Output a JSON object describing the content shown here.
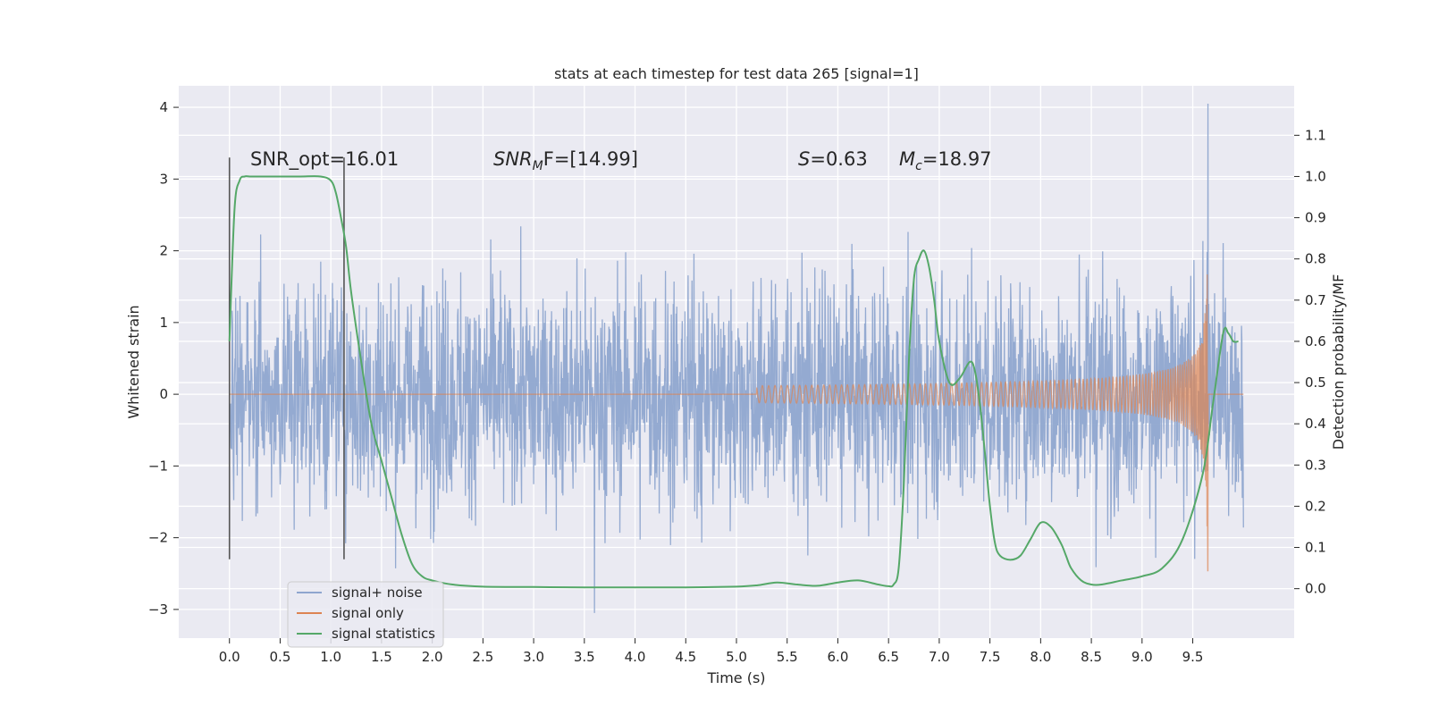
{
  "chart_data": {
    "type": "line",
    "title": "stats at each timestep for test data 265 [signal=1]",
    "xlabel": "Time (s)",
    "ylabel": "Whitened strain",
    "y2label": "Detection probability/MF",
    "xlim": [
      -0.5,
      10.5
    ],
    "ylim": [
      -3.4,
      4.3
    ],
    "y2lim": [
      -0.12,
      1.22
    ],
    "x_ticks": [
      0.0,
      0.5,
      1.0,
      1.5,
      2.0,
      2.5,
      3.0,
      3.5,
      4.0,
      4.5,
      5.0,
      5.5,
      6.0,
      6.5,
      7.0,
      7.5,
      8.0,
      8.5,
      9.0,
      9.5
    ],
    "x_tick_labels": [
      "0.0",
      "0.5",
      "1.0",
      "1.5",
      "2.0",
      "2.5",
      "3.0",
      "3.5",
      "4.0",
      "4.5",
      "5.0",
      "5.5",
      "6.0",
      "6.5",
      "7.0",
      "7.5",
      "8.0",
      "8.5",
      "9.0",
      "9.5"
    ],
    "y_ticks": [
      4,
      3,
      2,
      1,
      0,
      -1,
      -2,
      -3
    ],
    "y_tick_labels": [
      "4",
      "3",
      "2",
      "1",
      "0",
      "−1",
      "−2",
      "−3"
    ],
    "y2_ticks": [
      1.1,
      1.0,
      0.9,
      0.8,
      0.7,
      0.6,
      0.5,
      0.4,
      0.3,
      0.2,
      0.1,
      0.0
    ],
    "y2_tick_labels": [
      "1.1",
      "1.0",
      "0.9",
      "0.8",
      "0.7",
      "0.6",
      "0.5",
      "0.4",
      "0.3",
      "0.2",
      "0.1",
      "0.0"
    ],
    "grid": true,
    "legend_placement": "lower-left",
    "annotations": {
      "snr_opt": "SNR_opt=16.01",
      "snr_mf_base": "SNR",
      "snr_mf_sub": "M",
      "snr_mf_rest": "F=[14.99]",
      "s_sym": "S",
      "s_rest": "=0.63",
      "mc_sym": "M",
      "mc_sub": "c",
      "mc_rest": "=18.97"
    },
    "vertical_markers": [
      {
        "x": 0.0,
        "y_range": [
          -2.3,
          3.3
        ]
      },
      {
        "x": 1.13,
        "y_range": [
          -2.3,
          3.3
        ]
      }
    ],
    "series": [
      {
        "name": "signal+ noise",
        "color": "#8fa6cf",
        "x_range": [
          0.0,
          10.0
        ],
        "approx_envelope": {
          "upper_typical": 1.7,
          "lower_typical": -1.7,
          "max_peak": 4.05,
          "max_peak_x": 9.65,
          "min_peak": -3.05,
          "min_peak_x": 3.6
        }
      },
      {
        "name": "signal only",
        "color": "#dd8452",
        "chirp": {
          "start_x": 5.2,
          "merger_x": 9.65,
          "peak_amplitude": 2.8,
          "end_x": 10.0
        }
      },
      {
        "name": "signal statistics",
        "color": "#55a868",
        "axis": "right",
        "x": [
          0.0,
          0.05,
          0.1,
          0.15,
          0.2,
          0.3,
          0.5,
          0.7,
          0.9,
          1.0,
          1.05,
          1.1,
          1.15,
          1.2,
          1.3,
          1.4,
          1.5,
          1.6,
          1.7,
          1.8,
          1.9,
          2.0,
          2.2,
          2.5,
          3.0,
          3.5,
          4.0,
          4.5,
          5.0,
          5.2,
          5.4,
          5.6,
          5.8,
          6.0,
          6.2,
          6.4,
          6.5,
          6.55,
          6.6,
          6.65,
          6.7,
          6.75,
          6.8,
          6.85,
          6.9,
          6.95,
          7.0,
          7.1,
          7.2,
          7.3,
          7.35,
          7.4,
          7.45,
          7.5,
          7.55,
          7.6,
          7.7,
          7.8,
          7.9,
          8.0,
          8.1,
          8.2,
          8.25,
          8.3,
          8.4,
          8.5,
          8.6,
          8.8,
          9.0,
          9.2,
          9.4,
          9.6,
          9.7,
          9.8,
          9.85,
          9.9,
          9.95
        ],
        "values": [
          0.6,
          0.92,
          0.99,
          1.0,
          1.0,
          1.0,
          1.0,
          1.0,
          1.0,
          0.99,
          0.96,
          0.9,
          0.83,
          0.72,
          0.55,
          0.4,
          0.31,
          0.22,
          0.13,
          0.06,
          0.03,
          0.02,
          0.01,
          0.005,
          0.004,
          0.003,
          0.003,
          0.003,
          0.005,
          0.008,
          0.015,
          0.01,
          0.007,
          0.015,
          0.02,
          0.01,
          0.006,
          0.01,
          0.05,
          0.25,
          0.55,
          0.75,
          0.8,
          0.82,
          0.78,
          0.7,
          0.6,
          0.5,
          0.51,
          0.55,
          0.53,
          0.45,
          0.33,
          0.2,
          0.11,
          0.08,
          0.07,
          0.08,
          0.12,
          0.16,
          0.15,
          0.11,
          0.08,
          0.05,
          0.02,
          0.01,
          0.01,
          0.02,
          0.03,
          0.05,
          0.12,
          0.28,
          0.45,
          0.62,
          0.62,
          0.6,
          0.6
        ],
        "approx": true
      }
    ]
  }
}
